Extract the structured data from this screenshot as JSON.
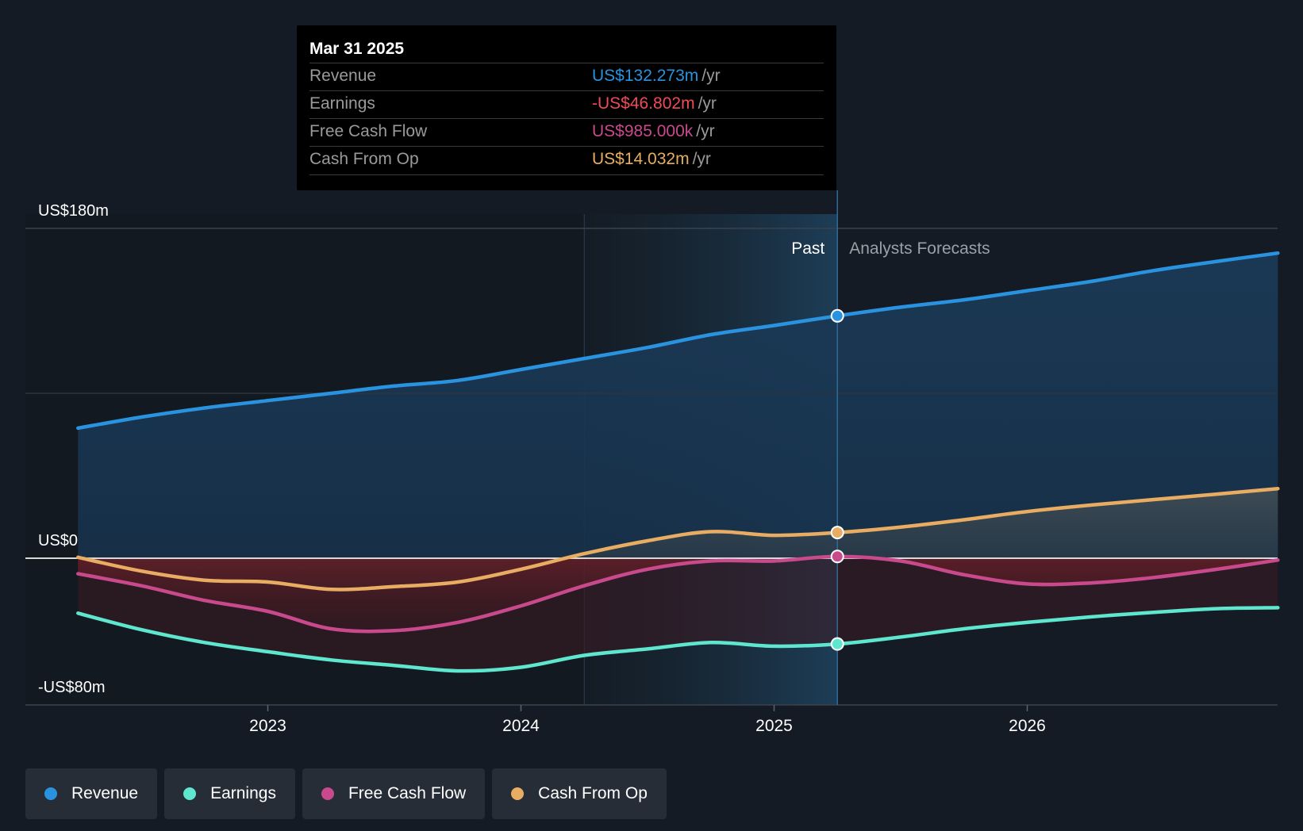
{
  "tooltip": {
    "date": "Mar 31 2025",
    "rows": [
      {
        "label": "Revenue",
        "value": "US$132.273m",
        "unit": "/yr"
      },
      {
        "label": "Earnings",
        "value": "-US$46.802m",
        "unit": "/yr"
      },
      {
        "label": "Free Cash Flow",
        "value": "US$985.000k",
        "unit": "/yr"
      },
      {
        "label": "Cash From Op",
        "value": "US$14.032m",
        "unit": "/yr"
      }
    ]
  },
  "legend": {
    "items": [
      {
        "label": "Revenue"
      },
      {
        "label": "Earnings"
      },
      {
        "label": "Free Cash Flow"
      },
      {
        "label": "Cash From Op"
      }
    ]
  },
  "colors": {
    "revenue": "#2a93e0",
    "earnings": "#5ee6cf",
    "free_cash_flow": "#c84a8c",
    "cash_from_op": "#e8ad62",
    "earnings_value": "#f04b55"
  },
  "chart_data": {
    "type": "line",
    "y_tick_labels": [
      "US$180m",
      "US$0",
      "-US$80m"
    ],
    "ylim": [
      -80,
      180
    ],
    "x_ticks": [
      2023,
      2024,
      2025,
      2026
    ],
    "xlim": [
      2022.25,
      2026.99
    ],
    "past_label": "Past",
    "forecast_label": "Analysts Forecasts",
    "past_divider_x": 2025.25,
    "highlight_start_x": 2024.25,
    "series": [
      {
        "name": "Revenue",
        "key": "revenue",
        "fill": "zero",
        "points": [
          [
            2022.25,
            71
          ],
          [
            2022.5,
            77
          ],
          [
            2022.75,
            82
          ],
          [
            2023.0,
            86
          ],
          [
            2023.25,
            90
          ],
          [
            2023.5,
            94
          ],
          [
            2023.75,
            97
          ],
          [
            2024.0,
            103
          ],
          [
            2024.25,
            109
          ],
          [
            2024.5,
            115
          ],
          [
            2024.75,
            122
          ],
          [
            2025.0,
            127
          ],
          [
            2025.25,
            132.273
          ],
          [
            2025.5,
            137
          ],
          [
            2025.75,
            141
          ],
          [
            2026.0,
            146
          ],
          [
            2026.25,
            151
          ],
          [
            2026.5,
            157
          ],
          [
            2026.75,
            162
          ],
          [
            2026.99,
            166.5
          ]
        ]
      },
      {
        "name": "Cash From Op",
        "key": "cash_from_op",
        "fill": "zero",
        "points": [
          [
            2022.25,
            0.5
          ],
          [
            2022.5,
            -7
          ],
          [
            2022.75,
            -12
          ],
          [
            2023.0,
            -13
          ],
          [
            2023.25,
            -17
          ],
          [
            2023.5,
            -15.5
          ],
          [
            2023.75,
            -13
          ],
          [
            2024.0,
            -6
          ],
          [
            2024.25,
            2.5
          ],
          [
            2024.5,
            9.5
          ],
          [
            2024.75,
            14.5
          ],
          [
            2025.0,
            12.5
          ],
          [
            2025.25,
            14.032
          ],
          [
            2025.5,
            17
          ],
          [
            2025.75,
            21
          ],
          [
            2026.0,
            25.5
          ],
          [
            2026.25,
            29
          ],
          [
            2026.5,
            32
          ],
          [
            2026.75,
            35
          ],
          [
            2026.99,
            38
          ]
        ]
      },
      {
        "name": "Free Cash Flow",
        "key": "free_cash_flow",
        "fill": "zero",
        "points": [
          [
            2022.25,
            -8.5
          ],
          [
            2022.5,
            -15
          ],
          [
            2022.75,
            -23
          ],
          [
            2023.0,
            -29
          ],
          [
            2023.25,
            -38.5
          ],
          [
            2023.5,
            -39.5
          ],
          [
            2023.75,
            -35
          ],
          [
            2024.0,
            -26
          ],
          [
            2024.25,
            -15
          ],
          [
            2024.5,
            -6
          ],
          [
            2024.75,
            -1.5
          ],
          [
            2025.0,
            -1.5
          ],
          [
            2025.25,
            0.985
          ],
          [
            2025.5,
            -1.5
          ],
          [
            2025.75,
            -9
          ],
          [
            2026.0,
            -14
          ],
          [
            2026.25,
            -13.5
          ],
          [
            2026.5,
            -10.5
          ],
          [
            2026.75,
            -6
          ],
          [
            2026.99,
            -1
          ]
        ]
      },
      {
        "name": "Earnings",
        "key": "earnings",
        "fill": "zero",
        "points": [
          [
            2022.25,
            -30
          ],
          [
            2022.5,
            -39
          ],
          [
            2022.75,
            -46
          ],
          [
            2023.0,
            -51
          ],
          [
            2023.25,
            -55.5
          ],
          [
            2023.5,
            -58.5
          ],
          [
            2023.75,
            -61.5
          ],
          [
            2024.0,
            -59.5
          ],
          [
            2024.25,
            -53
          ],
          [
            2024.5,
            -49.5
          ],
          [
            2024.75,
            -46
          ],
          [
            2025.0,
            -48
          ],
          [
            2025.25,
            -46.802
          ],
          [
            2025.5,
            -43
          ],
          [
            2025.75,
            -38.5
          ],
          [
            2026.0,
            -35
          ],
          [
            2026.25,
            -32
          ],
          [
            2026.5,
            -29.5
          ],
          [
            2026.75,
            -27.5
          ],
          [
            2026.99,
            -27
          ]
        ]
      }
    ]
  }
}
